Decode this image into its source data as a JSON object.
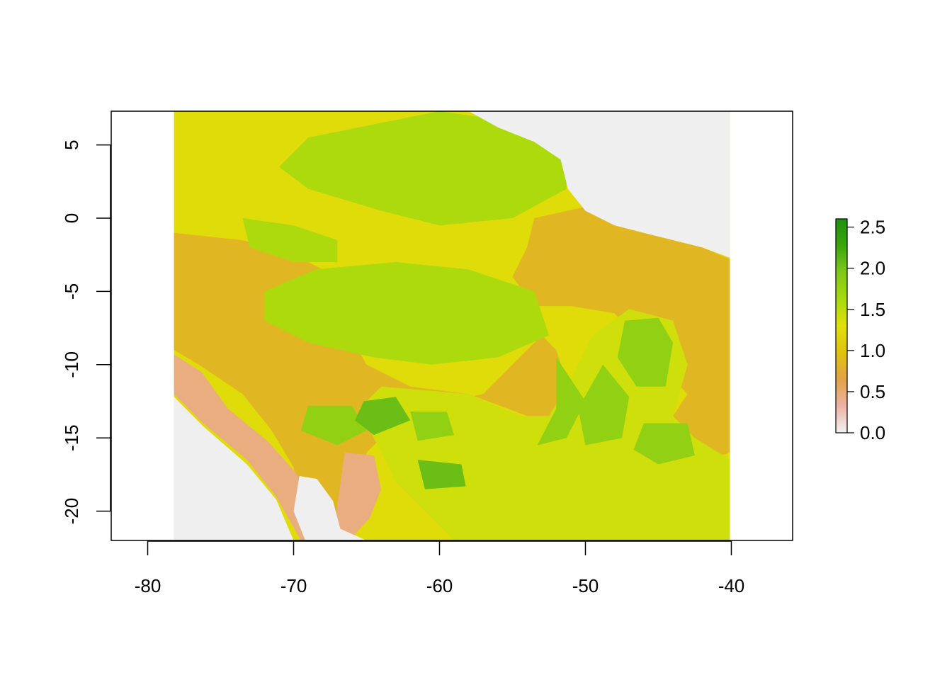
{
  "chart_data": {
    "type": "heatmap",
    "title": "",
    "xlabel": "",
    "ylabel": "",
    "xlim": [
      -82.5,
      -35.8
    ],
    "ylim": [
      -22,
      7.3
    ],
    "raster_extent": {
      "xmin": -78.2,
      "xmax": -40.1,
      "ymin": -22,
      "ymax": 7.3
    },
    "x_ticks": [
      {
        "value": -80,
        "label": "-80"
      },
      {
        "value": -70,
        "label": "-70"
      },
      {
        "value": -60,
        "label": "-60"
      },
      {
        "value": -50,
        "label": "-50"
      },
      {
        "value": -40,
        "label": "-40"
      }
    ],
    "y_ticks": [
      {
        "value": 5,
        "label": "5"
      },
      {
        "value": 0,
        "label": "0"
      },
      {
        "value": -5,
        "label": "-5"
      },
      {
        "value": -10,
        "label": "-10"
      },
      {
        "value": -15,
        "label": "-15"
      },
      {
        "value": -20,
        "label": "-20"
      }
    ],
    "legend": {
      "placement": "right",
      "range": [
        0,
        2.6
      ],
      "ticks": [
        {
          "value": 0.0,
          "label": "0.0"
        },
        {
          "value": 0.5,
          "label": "0.5"
        },
        {
          "value": 1.0,
          "label": "1.0"
        },
        {
          "value": 1.5,
          "label": "1.5"
        },
        {
          "value": 2.0,
          "label": "2.0"
        },
        {
          "value": 2.5,
          "label": "2.5"
        }
      ]
    },
    "colors": {
      "nodata": "#efefef",
      "ramp": [
        "#f2f2f2",
        "#ecb3a4",
        "#e3a346",
        "#e0c20d",
        "#e0e10a",
        "#a8d90c",
        "#80c81a",
        "#3aa60a",
        "#1e9010"
      ]
    },
    "regions": [
      {
        "value": 1.25,
        "poly": [
          [
            -78.2,
            7.3
          ],
          [
            -40.1,
            7.3
          ],
          [
            -40.1,
            -22
          ],
          [
            -78.2,
            -22
          ]
        ]
      },
      {
        "value": 0.85,
        "poly": [
          [
            -78.2,
            -1
          ],
          [
            -73.5,
            -1.5
          ],
          [
            -70,
            -2.5
          ],
          [
            -67,
            -4
          ],
          [
            -67,
            -6.5
          ],
          [
            -65,
            -10
          ],
          [
            -62,
            -11.5
          ],
          [
            -58,
            -12
          ],
          [
            -54,
            -13.5
          ],
          [
            -52,
            -13.5
          ],
          [
            -51,
            -12
          ],
          [
            -52,
            -9
          ],
          [
            -53,
            -8
          ],
          [
            -55,
            -10
          ],
          [
            -57,
            -12
          ],
          [
            -62,
            -13
          ],
          [
            -65,
            -16
          ],
          [
            -66.5,
            -22
          ],
          [
            -69,
            -22
          ],
          [
            -70,
            -17
          ],
          [
            -71.5,
            -14.5
          ],
          [
            -73.5,
            -12
          ],
          [
            -76.5,
            -10
          ],
          [
            -78.2,
            -9
          ]
        ]
      },
      {
        "value": 0.85,
        "poly": [
          [
            -53.5,
            0
          ],
          [
            -49,
            1
          ],
          [
            -46,
            -1
          ],
          [
            -42,
            -2
          ],
          [
            -40.1,
            -2.8
          ],
          [
            -40.1,
            -16
          ],
          [
            -43,
            -17
          ],
          [
            -45,
            -15
          ],
          [
            -43,
            -12
          ],
          [
            -46,
            -9
          ],
          [
            -48,
            -6.5
          ],
          [
            -51,
            -6
          ],
          [
            -53.5,
            -6
          ],
          [
            -55,
            -4
          ],
          [
            -54,
            -2
          ]
        ]
      },
      {
        "value": 1.6,
        "poly": [
          [
            -60,
            7.3
          ],
          [
            -56.5,
            6.8
          ],
          [
            -53.5,
            5.2
          ],
          [
            -51.3,
            4
          ],
          [
            -51.3,
            2
          ],
          [
            -55,
            0
          ],
          [
            -60,
            -0.5
          ],
          [
            -64,
            0.5
          ],
          [
            -69,
            2
          ],
          [
            -71,
            3.5
          ],
          [
            -69,
            5.5
          ],
          [
            -64,
            6.5
          ]
        ]
      },
      {
        "value": 1.6,
        "poly": [
          [
            -72,
            -5
          ],
          [
            -68.5,
            -3.5
          ],
          [
            -63,
            -3
          ],
          [
            -58,
            -3.5
          ],
          [
            -53.5,
            -5
          ],
          [
            -52.5,
            -8
          ],
          [
            -56,
            -9.5
          ],
          [
            -60.5,
            -10
          ],
          [
            -64.5,
            -9.5
          ],
          [
            -69,
            -8.5
          ],
          [
            -72,
            -7
          ]
        ]
      },
      {
        "value": 1.6,
        "poly": [
          [
            -73.5,
            0
          ],
          [
            -70,
            -0.5
          ],
          [
            -67,
            -1.5
          ],
          [
            -67,
            -3
          ],
          [
            -70,
            -3
          ],
          [
            -73,
            -2
          ]
        ]
      },
      {
        "value": 1.4,
        "poly": [
          [
            -64,
            -11.5
          ],
          [
            -58,
            -12
          ],
          [
            -54.5,
            -13.5
          ],
          [
            -52.5,
            -13.5
          ],
          [
            -51,
            -11
          ],
          [
            -49.5,
            -8
          ],
          [
            -47,
            -6.2
          ],
          [
            -44,
            -7
          ],
          [
            -43,
            -10
          ],
          [
            -44,
            -13.5
          ],
          [
            -42.5,
            -15
          ],
          [
            -40.1,
            -16.5
          ],
          [
            -40.1,
            -22
          ],
          [
            -59,
            -22
          ],
          [
            -63,
            -18
          ],
          [
            -64.5,
            -15
          ],
          [
            -65.5,
            -13
          ]
        ]
      },
      {
        "value": 1.8,
        "poly": [
          [
            -52,
            -9.5
          ],
          [
            -50,
            -12.5
          ],
          [
            -51.3,
            -15
          ],
          [
            -53.3,
            -15.5
          ],
          [
            -52,
            -13
          ]
        ]
      },
      {
        "value": 1.8,
        "poly": [
          [
            -48.8,
            -10
          ],
          [
            -47,
            -12.2
          ],
          [
            -47.5,
            -15
          ],
          [
            -50,
            -15.5
          ],
          [
            -50.5,
            -13
          ]
        ]
      },
      {
        "value": 1.8,
        "poly": [
          [
            -47.3,
            -7
          ],
          [
            -45,
            -6.8
          ],
          [
            -44,
            -8.5
          ],
          [
            -44.5,
            -11.5
          ],
          [
            -46.5,
            -11.5
          ],
          [
            -47.8,
            -9.5
          ]
        ]
      },
      {
        "value": 1.8,
        "poly": [
          [
            -46,
            -14
          ],
          [
            -43,
            -14
          ],
          [
            -42.5,
            -16.2
          ],
          [
            -45,
            -16.8
          ],
          [
            -46.7,
            -15.8
          ]
        ]
      },
      {
        "value": 1.8,
        "poly": [
          [
            -62,
            -13.2
          ],
          [
            -59.5,
            -13.2
          ],
          [
            -59,
            -14.8
          ],
          [
            -61.5,
            -15.2
          ]
        ]
      },
      {
        "value": 1.8,
        "poly": [
          [
            -69,
            -12.8
          ],
          [
            -66,
            -12.8
          ],
          [
            -65,
            -14.5
          ],
          [
            -67,
            -15.5
          ],
          [
            -69.5,
            -14.5
          ]
        ]
      },
      {
        "value": 2.05,
        "poly": [
          [
            -65.2,
            -12.5
          ],
          [
            -63,
            -12.2
          ],
          [
            -62,
            -13.8
          ],
          [
            -64.5,
            -14.8
          ],
          [
            -65.8,
            -13.8
          ]
        ]
      },
      {
        "value": 2.05,
        "poly": [
          [
            -61.5,
            -16.5
          ],
          [
            -58.5,
            -16.8
          ],
          [
            -58.2,
            -18.3
          ],
          [
            -61,
            -18.5
          ]
        ]
      },
      {
        "value": 0.45,
        "poly": [
          [
            -78.2,
            -9.3
          ],
          [
            -76.3,
            -10.5
          ],
          [
            -74.5,
            -13
          ],
          [
            -71.8,
            -15.2
          ],
          [
            -70,
            -17.2
          ],
          [
            -69.2,
            -18.3
          ],
          [
            -68.2,
            -20
          ],
          [
            -67.5,
            -22
          ],
          [
            -69.5,
            -22
          ],
          [
            -71.2,
            -19
          ],
          [
            -73.2,
            -16.5
          ],
          [
            -76.2,
            -14
          ],
          [
            -78.2,
            -12
          ]
        ]
      },
      {
        "value": 0.45,
        "poly": [
          [
            -66.5,
            -16
          ],
          [
            -64.5,
            -16.2
          ],
          [
            -64,
            -18.5
          ],
          [
            -64.8,
            -20.5
          ],
          [
            -66.2,
            -22
          ],
          [
            -67.2,
            -21
          ]
        ]
      },
      {
        "value": 0,
        "poly": [
          [
            -78.2,
            -12.2
          ],
          [
            -76.2,
            -14.2
          ],
          [
            -73.2,
            -16.8
          ],
          [
            -71.2,
            -19.2
          ],
          [
            -70,
            -22
          ],
          [
            -78.2,
            -22
          ]
        ]
      },
      {
        "value": 0,
        "poly": [
          [
            -69.6,
            -17.6
          ],
          [
            -68.4,
            -17.8
          ],
          [
            -67.3,
            -19.3
          ],
          [
            -66.8,
            -21.2
          ],
          [
            -65,
            -22
          ],
          [
            -69.2,
            -22
          ],
          [
            -70,
            -20
          ]
        ]
      },
      {
        "value": 0,
        "poly": [
          [
            -58,
            7.3
          ],
          [
            -40.1,
            7.3
          ],
          [
            -40.1,
            -2.7
          ],
          [
            -42,
            -2
          ],
          [
            -44,
            -1.5
          ],
          [
            -46,
            -1
          ],
          [
            -48,
            -0.5
          ],
          [
            -50,
            0.5
          ],
          [
            -51.2,
            2
          ],
          [
            -51.7,
            4
          ],
          [
            -53.5,
            5.2
          ],
          [
            -56,
            6.2
          ]
        ]
      }
    ]
  }
}
